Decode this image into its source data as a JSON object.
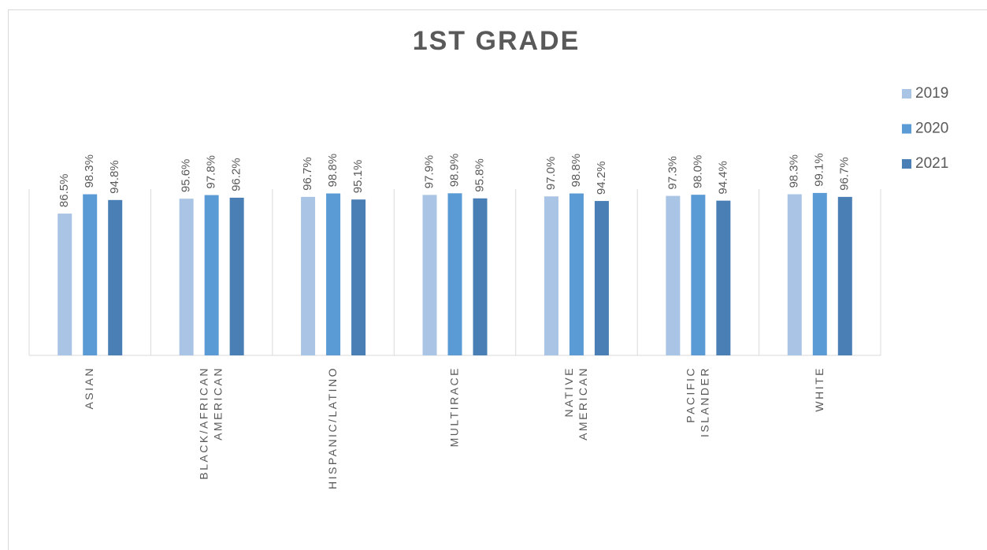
{
  "chart_data": {
    "type": "bar",
    "title": "1ST GRADE",
    "categories": [
      "ASIAN",
      "BLACK/AFRICAN AMERICAN",
      "HISPANIC/LATINO",
      "MULTIRACE",
      "NATIVE AMERICAN",
      "PACIFIC ISLANDER",
      "WHITE"
    ],
    "series": [
      {
        "name": "2019",
        "color": "#a9c4e4",
        "values": [
          86.5,
          95.6,
          96.7,
          97.9,
          97.0,
          97.3,
          98.3
        ],
        "value_labels": [
          "86.5%",
          "95.6%",
          "96.7%",
          "97.9%",
          "97.0%",
          "97.3%",
          "98.3%"
        ]
      },
      {
        "name": "2020",
        "color": "#5b9bd5",
        "values": [
          98.3,
          97.8,
          98.8,
          98.9,
          98.8,
          98.0,
          99.1
        ],
        "value_labels": [
          "98.3%",
          "97.8%",
          "98.8%",
          "98.9%",
          "98.8%",
          "98.0%",
          "99.1%"
        ]
      },
      {
        "name": "2021",
        "color": "#4a7fb5",
        "values": [
          94.8,
          96.2,
          95.1,
          95.8,
          94.2,
          94.4,
          96.7
        ],
        "value_labels": [
          "94.8%",
          "96.2%",
          "95.1%",
          "95.8%",
          "94.2%",
          "94.4%",
          "96.7%"
        ]
      }
    ],
    "ylim": [
      0,
      100
    ],
    "legend": "right"
  }
}
